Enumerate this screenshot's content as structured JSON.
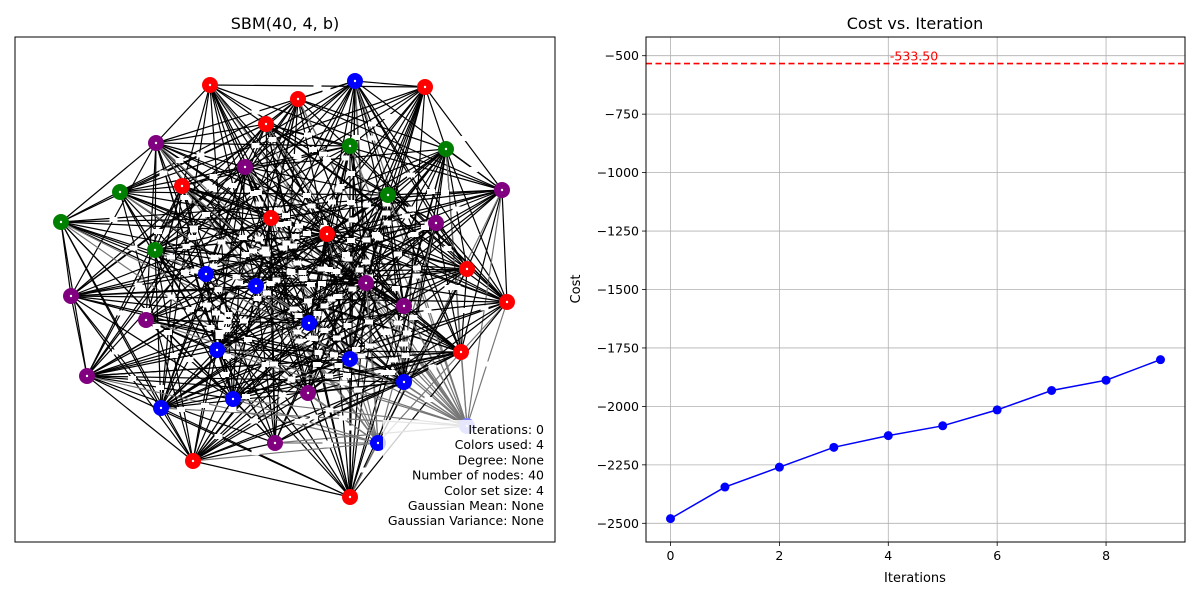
{
  "chart_data": [
    {
      "type": "network",
      "title": "SBM(40, 4, b)",
      "colors": {
        "red": "#ff0000",
        "blue": "#0000ff",
        "green": "#008000",
        "purple": "#800080",
        "highlight": "#8080ff"
      },
      "nodes": [
        {
          "color": "red"
        },
        {
          "color": "blue"
        },
        {
          "color": "red"
        },
        {
          "color": "red"
        },
        {
          "color": "red"
        },
        {
          "color": "green"
        },
        {
          "color": "green"
        },
        {
          "color": "purple"
        },
        {
          "color": "purple"
        },
        {
          "color": "green"
        },
        {
          "color": "red"
        },
        {
          "color": "green"
        },
        {
          "color": "purple"
        },
        {
          "color": "green"
        },
        {
          "color": "red"
        },
        {
          "color": "red"
        },
        {
          "color": "purple"
        },
        {
          "color": "red"
        },
        {
          "color": "green"
        },
        {
          "color": "purple"
        },
        {
          "color": "blue"
        },
        {
          "color": "blue"
        },
        {
          "color": "purple"
        },
        {
          "color": "red"
        },
        {
          "color": "purple"
        },
        {
          "color": "purple"
        },
        {
          "color": "blue"
        },
        {
          "color": "purple"
        },
        {
          "color": "blue"
        },
        {
          "color": "red"
        },
        {
          "color": "blue"
        },
        {
          "color": "purple"
        },
        {
          "color": "blue"
        },
        {
          "color": "blue"
        },
        {
          "color": "blue"
        },
        {
          "color": "highlight"
        },
        {
          "color": "purple"
        },
        {
          "color": "blue"
        },
        {
          "color": "red"
        },
        {
          "color": "red"
        }
      ],
      "info_lines": [
        "Iterations: 0",
        "Colors used: 4",
        "Degree: None",
        "Number of nodes: 40",
        "Color set size: 4",
        "Gaussian Mean: None",
        "Gaussian Variance: None"
      ]
    },
    {
      "type": "line",
      "title": "Cost vs. Iteration",
      "xlabel": "Iterations",
      "ylabel": "Cost",
      "x": [
        0,
        1,
        2,
        3,
        4,
        5,
        6,
        7,
        8,
        9
      ],
      "series": [
        {
          "values": [
            -2480,
            -2345,
            -2260,
            -2175,
            -2125,
            -2083,
            -2015,
            -1932,
            -1888,
            -1800
          ],
          "color": "#0000ff"
        }
      ],
      "reference_line": {
        "value": -533.5,
        "label": "-533.50",
        "color": "#ff0000",
        "style": "dashed"
      },
      "xlim": [
        -0.45,
        9.45
      ],
      "ylim": [
        -2580,
        -420
      ],
      "xticks": [
        "0",
        "2",
        "4",
        "6",
        "8"
      ],
      "xtick_values": [
        0,
        2,
        4,
        6,
        8
      ],
      "yticks": [
        "−500",
        "−750",
        "−1000",
        "−1250",
        "−1500",
        "−1750",
        "−2000",
        "−2250",
        "−2500"
      ],
      "ytick_values": [
        -500,
        -750,
        -1000,
        -1250,
        -1500,
        -1750,
        -2000,
        -2250,
        -2500
      ],
      "grid": true
    }
  ]
}
